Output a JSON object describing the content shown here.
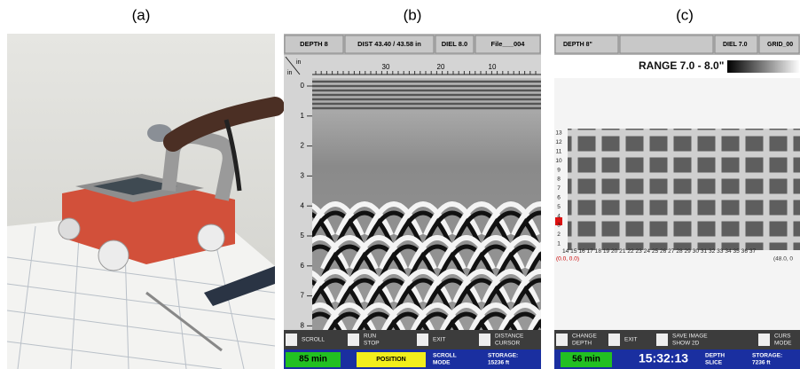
{
  "panel_labels": [
    "(a)",
    "(b)",
    "(c)"
  ],
  "panel_b": {
    "header": [
      "DEPTH 8",
      "DIST 43.40 / 43.58 in",
      "DIEL 8.0",
      "File___004"
    ],
    "unit_x": "in",
    "unit_y": "in",
    "distance_labels": [
      "30",
      "20",
      "10"
    ],
    "depth_labels": [
      "0",
      "1",
      "2",
      "3",
      "4",
      "5",
      "6",
      "7",
      "8"
    ],
    "buttons": [
      [
        "SCROLL"
      ],
      [
        "RUN",
        "STOP"
      ],
      [
        "EXIT"
      ],
      [
        "DISTANCE",
        "CURSOR"
      ]
    ],
    "status": [
      [
        "85 min"
      ],
      [
        "POSITION"
      ],
      [
        "SCROLL",
        "MODE"
      ],
      [
        "STORAGE:",
        "15236 ft"
      ]
    ]
  },
  "panel_c": {
    "header": [
      "DEPTH 8\"",
      "DIEL 7.0",
      "GRID_00"
    ],
    "range": "RANGE 7.0 - 8.0\"",
    "y_labels": [
      "13",
      "12",
      "11",
      "10",
      "9",
      "8",
      "7",
      "6",
      "5",
      "4",
      "3",
      "2",
      "1"
    ],
    "x_labels": "14 15 16 17 18 19 20 21 22 23 24 25 26 27 28 29 30 31 32 33 34 35 36 37",
    "origin": "(0.0, 0.0)",
    "end": "(48.0, 0",
    "buttons": [
      [
        "CHANGE",
        "DEPTH"
      ],
      [
        "EXIT"
      ],
      [
        "SAVE IMAGE",
        "SHOW 2D"
      ],
      [
        "CURS",
        "MODE"
      ]
    ],
    "status": [
      [
        "56 min"
      ],
      [
        "15:32:13"
      ],
      [
        "DEPTH",
        "SLICE"
      ],
      [
        "STORAGE:",
        "7236 ft"
      ]
    ]
  }
}
